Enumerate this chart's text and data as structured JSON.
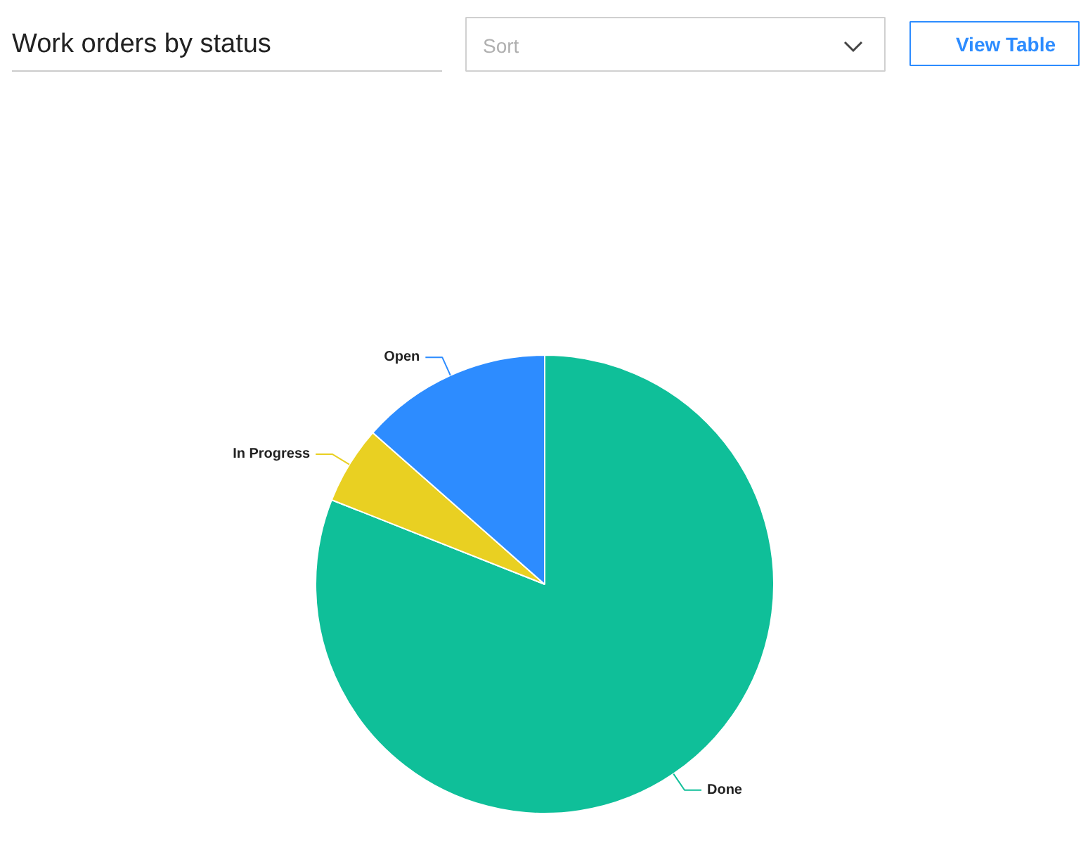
{
  "chart_data": {
    "type": "pie",
    "title": "Work orders by status",
    "categories": [
      "Done",
      "In Progress",
      "Open"
    ],
    "values": [
      81,
      5.5,
      13.5
    ],
    "colors": [
      "#0fbf99",
      "#e9d022",
      "#2d8cff"
    ],
    "annotations": [
      "Sort",
      "View Table"
    ]
  }
}
